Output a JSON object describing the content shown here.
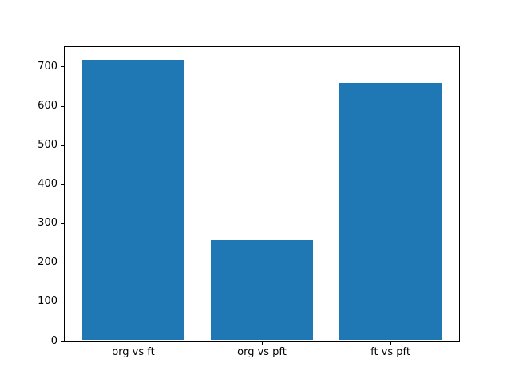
{
  "figure": {
    "background_color": "#ffffff"
  },
  "chart_data": {
    "type": "bar",
    "categories": [
      "org vs ft",
      "org vs pft",
      "ft vs pft"
    ],
    "values": [
      718,
      257,
      659
    ],
    "title": "",
    "xlabel": "",
    "ylabel": "",
    "ylim": [
      0,
      754
    ],
    "yticks": [
      0,
      100,
      200,
      300,
      400,
      500,
      600,
      700
    ],
    "bar_color": "#1f77b4",
    "axis_color": "#000000",
    "tick_label_color": "#000000",
    "grid": false,
    "legend": "none",
    "bar_width_fraction": 0.8
  }
}
